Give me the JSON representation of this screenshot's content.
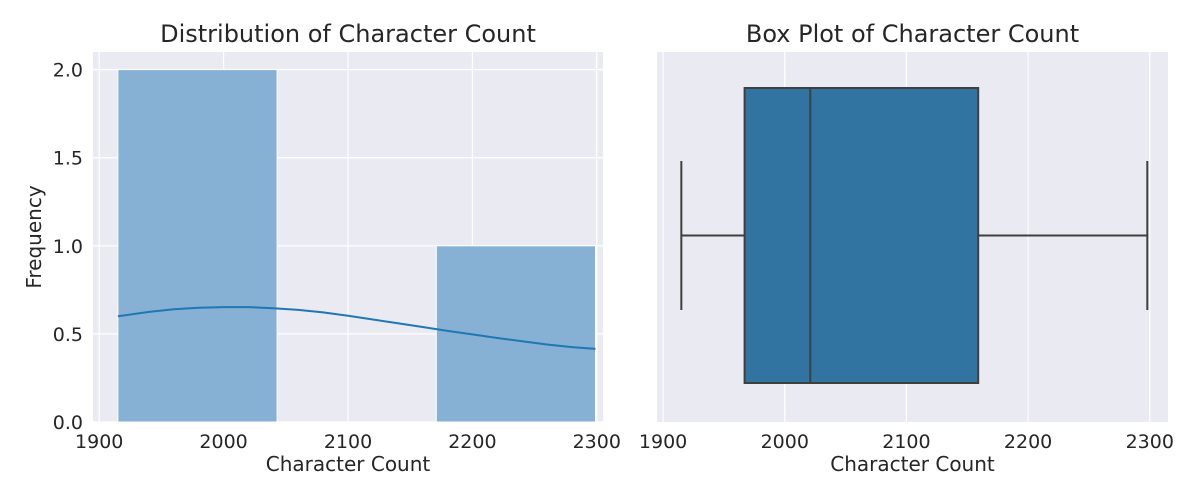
{
  "chart_data": [
    {
      "type": "histogram",
      "title": "Distribution of Character Count",
      "xlabel": "Character Count",
      "ylabel": "Frequency",
      "xlim": [
        1895,
        2305
      ],
      "ylim": [
        0,
        2.1
      ],
      "xticks": [
        1900,
        2000,
        2100,
        2200,
        2300
      ],
      "yticks": [
        0.0,
        0.5,
        1.0,
        1.5,
        2.0
      ],
      "xtick_labels": [
        "1900",
        "2000",
        "2100",
        "2200",
        "2300"
      ],
      "ytick_labels": [
        "0.0",
        "0.5",
        "1.0",
        "1.5",
        "2.0"
      ],
      "bins": [
        {
          "start": 1915,
          "end": 2043,
          "count": 2
        },
        {
          "start": 2043,
          "end": 2171,
          "count": 0
        },
        {
          "start": 2171,
          "end": 2299,
          "count": 1
        }
      ],
      "kde": {
        "x": [
          1915,
          1940,
          1960,
          1980,
          2000,
          2020,
          2040,
          2060,
          2080,
          2100,
          2120,
          2140,
          2160,
          2180,
          2200,
          2220,
          2240,
          2260,
          2280,
          2299
        ],
        "y": [
          0.6,
          0.625,
          0.64,
          0.648,
          0.652,
          0.652,
          0.646,
          0.636,
          0.622,
          0.603,
          0.582,
          0.561,
          0.539,
          0.517,
          0.497,
          0.477,
          0.458,
          0.44,
          0.425,
          0.415
        ]
      },
      "grid": true,
      "colors": {
        "bar": "#86b1d4",
        "bar_edge": "#ffffff",
        "kde": "#1f77b4"
      }
    },
    {
      "type": "box",
      "title": "Box Plot of Character Count",
      "xlabel": "Character Count",
      "xlim": [
        1895,
        2315
      ],
      "xticks": [
        1900,
        2000,
        2100,
        2200,
        2300
      ],
      "xtick_labels": [
        "1900",
        "2000",
        "2100",
        "2200",
        "2300"
      ],
      "whisker_low": 1915,
      "q1": 1967,
      "median": 2021,
      "q3": 2159,
      "whisker_high": 2298,
      "grid": true,
      "colors": {
        "box": "#3274a1",
        "line": "#3f3f3f"
      }
    }
  ]
}
